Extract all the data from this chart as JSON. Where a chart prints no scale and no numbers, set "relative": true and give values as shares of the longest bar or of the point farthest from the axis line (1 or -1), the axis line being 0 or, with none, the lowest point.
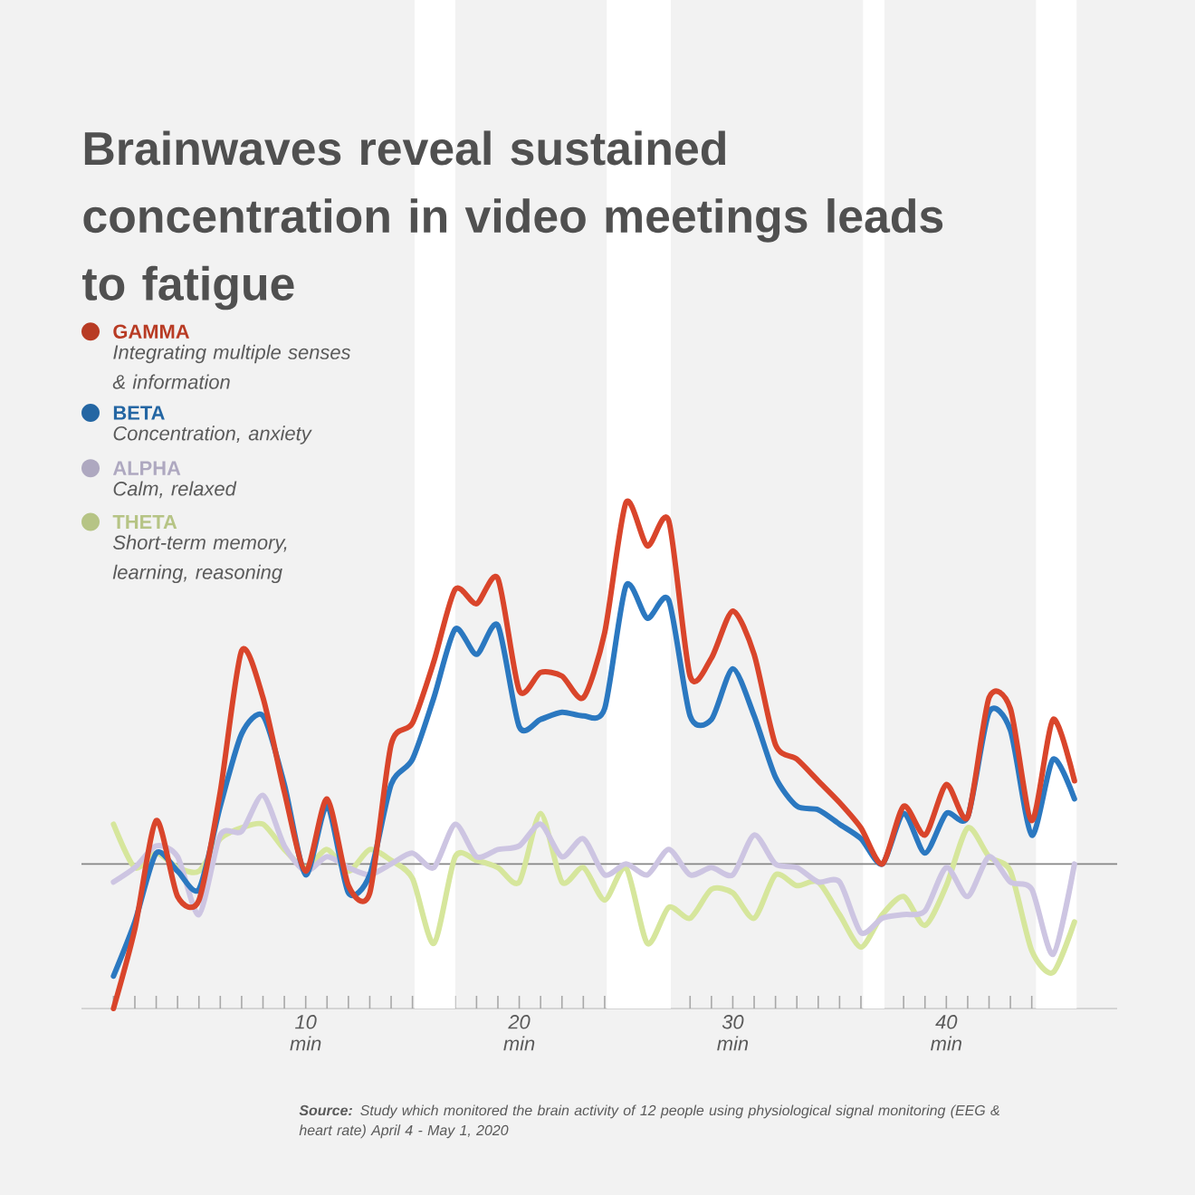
{
  "chart_data": {
    "type": "line",
    "title": "Brainwaves reveal sustained concentration in video meetings leads to fatigue",
    "relative": true,
    "legend": "top left",
    "x": [
      1,
      2,
      3,
      4,
      5,
      6,
      7,
      8,
      9,
      10,
      11,
      12,
      13,
      14,
      15,
      16,
      17,
      18,
      19,
      20,
      21,
      22,
      23,
      24,
      25,
      26,
      27,
      28,
      29,
      30,
      31,
      32,
      33,
      34,
      35,
      36,
      37,
      38,
      39,
      40,
      41,
      42,
      43,
      44,
      45,
      46
    ],
    "xlim": [
      -0.5,
      48
    ],
    "xticks": [
      {
        "value": 1,
        "label": null
      },
      {
        "value": 2,
        "label": null
      },
      {
        "value": 3,
        "label": null
      },
      {
        "value": 4,
        "label": null
      },
      {
        "value": 5,
        "label": null
      },
      {
        "value": 6,
        "label": null
      },
      {
        "value": 7,
        "label": null
      },
      {
        "value": 8,
        "label": null
      },
      {
        "value": 9,
        "label": null
      },
      {
        "value": 10,
        "label": "10 min"
      },
      {
        "value": 11,
        "label": null
      },
      {
        "value": 12,
        "label": null
      },
      {
        "value": 13,
        "label": null
      },
      {
        "value": 14,
        "label": null
      },
      {
        "value": 15,
        "label": null
      },
      {
        "value": 16,
        "label": null
      },
      {
        "value": 17,
        "label": null
      },
      {
        "value": 18,
        "label": null
      },
      {
        "value": 19,
        "label": null
      },
      {
        "value": 20,
        "label": "20 min"
      },
      {
        "value": 21,
        "label": null
      },
      {
        "value": 22,
        "label": null
      },
      {
        "value": 23,
        "label": null
      },
      {
        "value": 24,
        "label": null
      },
      {
        "value": 25,
        "label": null
      },
      {
        "value": 26,
        "label": null
      },
      {
        "value": 27,
        "label": null
      },
      {
        "value": 28,
        "label": null
      },
      {
        "value": 29,
        "label": null
      },
      {
        "value": 30,
        "label": "30 min"
      },
      {
        "value": 31,
        "label": null
      },
      {
        "value": 32,
        "label": null
      },
      {
        "value": 33,
        "label": null
      },
      {
        "value": 34,
        "label": null
      },
      {
        "value": 35,
        "label": null
      },
      {
        "value": 36,
        "label": null
      },
      {
        "value": 37,
        "label": null
      },
      {
        "value": 38,
        "label": null
      },
      {
        "value": 39,
        "label": null
      },
      {
        "value": 40,
        "label": "40 min"
      },
      {
        "value": 41,
        "label": null
      },
      {
        "value": 42,
        "label": null
      },
      {
        "value": 43,
        "label": null
      },
      {
        "value": 44,
        "label": null
      },
      {
        "value": 45,
        "label": null
      },
      {
        "value": 46,
        "label": null
      }
    ],
    "series": [
      {
        "name": "GAMMA",
        "color": "#d9452b",
        "values": [
          -0.4,
          -0.18,
          0.12,
          -0.09,
          -0.1,
          0.2,
          0.59,
          0.46,
          0.2,
          -0.02,
          0.18,
          -0.06,
          -0.08,
          0.33,
          0.39,
          0.56,
          0.76,
          0.72,
          0.79,
          0.48,
          0.53,
          0.52,
          0.46,
          0.64,
          1.0,
          0.88,
          0.95,
          0.52,
          0.57,
          0.7,
          0.58,
          0.33,
          0.29,
          0.23,
          0.17,
          0.1,
          0,
          0.16,
          0.08,
          0.22,
          0.13,
          0.46,
          0.43,
          0.12,
          0.4,
          0.23
        ]
      },
      {
        "name": "BETA",
        "color": "#2b78c0",
        "values": [
          -0.31,
          -0.16,
          0.03,
          -0.02,
          -0.07,
          0.16,
          0.36,
          0.41,
          0.22,
          -0.03,
          0.16,
          -0.08,
          -0.03,
          0.22,
          0.29,
          0.46,
          0.65,
          0.58,
          0.66,
          0.38,
          0.4,
          0.42,
          0.41,
          0.43,
          0.77,
          0.68,
          0.73,
          0.41,
          0.4,
          0.54,
          0.41,
          0.24,
          0.16,
          0.15,
          0.11,
          0.07,
          0,
          0.14,
          0.03,
          0.14,
          0.13,
          0.42,
          0.37,
          0.08,
          0.29,
          0.18
        ]
      },
      {
        "name": "ALPHA",
        "color": "#cdc5e2",
        "values": [
          -0.05,
          -0.01,
          0.05,
          0.02,
          -0.14,
          0.08,
          0.09,
          0.19,
          0.05,
          -0.02,
          0.02,
          -0.01,
          -0.03,
          0.0,
          0.03,
          -0.01,
          0.11,
          0.02,
          0.04,
          0.05,
          0.11,
          0.02,
          0.07,
          -0.03,
          0.0,
          -0.03,
          0.04,
          -0.03,
          -0.01,
          -0.03,
          0.08,
          0.0,
          -0.01,
          -0.05,
          -0.05,
          -0.19,
          -0.15,
          -0.14,
          -0.13,
          -0.01,
          -0.09,
          0.02,
          -0.05,
          -0.07,
          -0.25,
          0.0
        ]
      },
      {
        "name": "THETA",
        "color": "#d6e69c",
        "values": [
          0.11,
          -0.01,
          0.03,
          -0.01,
          -0.02,
          0.07,
          0.1,
          0.11,
          0.04,
          -0.01,
          0.04,
          -0.02,
          0.04,
          0.01,
          -0.04,
          -0.22,
          0.02,
          0.01,
          -0.01,
          -0.05,
          0.14,
          -0.05,
          -0.01,
          -0.1,
          -0.01,
          -0.22,
          -0.12,
          -0.15,
          -0.07,
          -0.08,
          -0.15,
          -0.03,
          -0.06,
          -0.05,
          -0.14,
          -0.23,
          -0.14,
          -0.09,
          -0.17,
          -0.06,
          0.1,
          0.02,
          -0.02,
          -0.24,
          -0.3,
          -0.16
        ]
      }
    ],
    "bands": [
      {
        "axis": "x",
        "from": 15.1,
        "to": 17,
        "color": "#ffffff"
      },
      {
        "axis": "x",
        "from": 24.1,
        "to": 27.1,
        "color": "#ffffff"
      },
      {
        "axis": "x",
        "from": 36.1,
        "to": 37.1,
        "color": "#ffffff"
      },
      {
        "axis": "x",
        "from": 44.2,
        "to": 46.1,
        "color": "#ffffff"
      }
    ],
    "annotations": [
      "Integrating multiple senses & information",
      "Concentration, anxiety",
      "Calm, relaxed",
      "Short-term memory, learning, reasoning",
      "**Source:** Study which monitored the brain activity of 12 people using physiological signal monitoring (EEG & heart rate) April 4 - May 1, 2020"
    ]
  }
}
